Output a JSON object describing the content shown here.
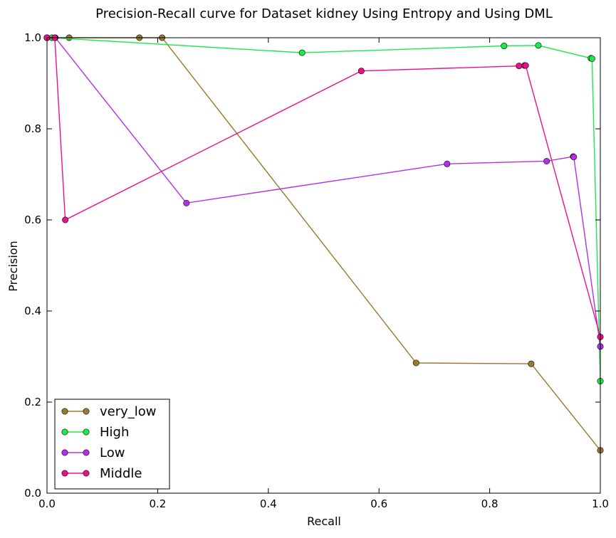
{
  "chart_data": {
    "type": "line",
    "title": "Precision-Recall curve for Dataset kidney Using Entropy and Using DML",
    "xlabel": "Recall",
    "ylabel": "Precision",
    "xlim": [
      0.0,
      1.0
    ],
    "ylim": [
      0.0,
      1.0
    ],
    "xticks": [
      "0.0",
      "0.2",
      "0.4",
      "0.6",
      "0.8",
      "1.0"
    ],
    "yticks": [
      "0.0",
      "0.2",
      "0.4",
      "0.6",
      "0.8",
      "1.0"
    ],
    "grid": false,
    "legend_position": "lower-left",
    "series": [
      {
        "name": "very_low",
        "color": "#9a7a2e",
        "x": [
          0.0,
          0.04,
          0.167,
          0.208,
          0.667,
          0.875,
          1.0
        ],
        "y": [
          1.0,
          1.0,
          1.0,
          1.0,
          0.286,
          0.284,
          0.094
        ]
      },
      {
        "name": "High",
        "color": "#1ee84a",
        "x": [
          0.0,
          0.009,
          0.461,
          0.826,
          0.888,
          0.983,
          0.985,
          1.0
        ],
        "y": [
          1.0,
          1.0,
          0.967,
          0.982,
          0.983,
          0.955,
          0.954,
          0.246
        ]
      },
      {
        "name": "Low",
        "color": "#b330e8",
        "x": [
          0.0,
          0.015,
          0.252,
          0.723,
          0.903,
          0.951,
          0.952,
          1.0
        ],
        "y": [
          1.0,
          1.0,
          0.637,
          0.723,
          0.729,
          0.739,
          0.738,
          0.322
        ]
      },
      {
        "name": "Middle",
        "color": "#ec0f8e",
        "x": [
          0.0,
          0.014,
          0.033,
          0.568,
          0.853,
          0.863,
          0.865,
          1.0
        ],
        "y": [
          1.0,
          1.0,
          0.6,
          0.927,
          0.938,
          0.939,
          0.939,
          0.343
        ]
      }
    ]
  }
}
